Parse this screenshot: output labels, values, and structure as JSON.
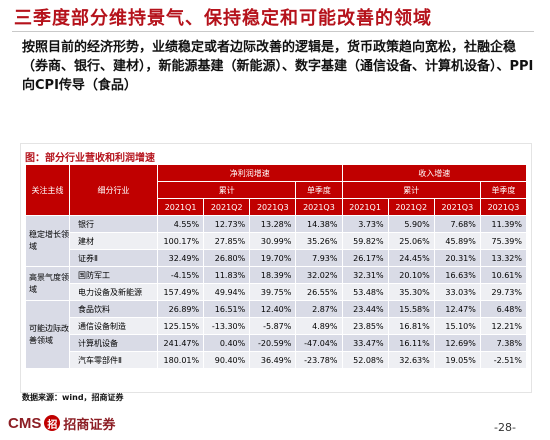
{
  "title": "三季度部分维持景气、保持稳定和可能改善的领域",
  "paragraph": "按照目前的经济形势，业绩稳定或者边际改善的逻辑是，货币政策趋向宽松，社融企稳（券商、银行、建材），新能源基建（新能源）、数字基建（通信设备、计算机设备）、PPI向CPI传导（食品）",
  "caption": "图：部分行业营收和利润增速",
  "table": {
    "header_row1": {
      "col_main_line": "关注主线",
      "col_industry": "细分行业",
      "net_profit_growth": "净利润增速",
      "revenue_growth": "收入增速"
    },
    "header_row2": {
      "cumulative": "累计",
      "single_quarter": "单季度",
      "cumulative_2": "累计",
      "single_quarter_2": "单季度"
    },
    "periods": [
      "2021Q1",
      "2021Q2",
      "2021Q3",
      "2021Q3",
      "2021Q1",
      "2021Q2",
      "2021Q3",
      "2021Q3"
    ],
    "groups": [
      {
        "name": "稳定增长领域",
        "rows": [
          {
            "industry": "银行",
            "values": [
              "4.55%",
              "12.73%",
              "13.28%",
              "14.38%",
              "3.73%",
              "5.90%",
              "7.68%",
              "11.39%"
            ]
          },
          {
            "industry": "建材",
            "values": [
              "100.17%",
              "27.85%",
              "30.99%",
              "35.26%",
              "59.82%",
              "25.06%",
              "45.89%",
              "75.39%"
            ]
          },
          {
            "industry": "证券Ⅱ",
            "values": [
              "32.49%",
              "26.80%",
              "19.70%",
              "7.93%",
              "26.17%",
              "24.45%",
              "20.31%",
              "13.32%"
            ]
          }
        ]
      },
      {
        "name": "高景气度领域",
        "rows": [
          {
            "industry": "国防军工",
            "values": [
              "-4.15%",
              "11.83%",
              "18.39%",
              "32.02%",
              "32.31%",
              "20.10%",
              "16.63%",
              "10.61%"
            ]
          },
          {
            "industry": "电力设备及新能源",
            "values": [
              "157.49%",
              "49.94%",
              "39.75%",
              "26.55%",
              "53.48%",
              "35.30%",
              "33.03%",
              "29.73%"
            ]
          }
        ]
      },
      {
        "name": "可能边际改善领域",
        "rows": [
          {
            "industry": "食品饮料",
            "values": [
              "26.89%",
              "16.51%",
              "12.40%",
              "2.87%",
              "23.44%",
              "15.58%",
              "12.47%",
              "6.48%"
            ]
          },
          {
            "industry": "通信设备制造",
            "values": [
              "125.15%",
              "-13.30%",
              "-5.87%",
              "4.89%",
              "23.85%",
              "16.81%",
              "15.10%",
              "12.21%"
            ]
          },
          {
            "industry": "计算机设备",
            "values": [
              "241.47%",
              "0.40%",
              "-20.59%",
              "-47.04%",
              "33.47%",
              "16.11%",
              "12.69%",
              "7.38%"
            ]
          },
          {
            "industry": "汽车零部件Ⅱ",
            "values": [
              "180.01%",
              "90.40%",
              "36.49%",
              "-23.78%",
              "52.08%",
              "32.63%",
              "19.05%",
              "-2.51%"
            ]
          }
        ]
      }
    ]
  },
  "source": "数据来源：wind，招商证券",
  "logo": {
    "latin": "CMS",
    "mark": "招",
    "chinese": "招商证券"
  },
  "page_number": "-28-",
  "colors": {
    "accent": "#c00000",
    "title": "#b5121b",
    "row_shade_1": "#d9dbe6",
    "row_shade_2": "#eeeff3"
  }
}
